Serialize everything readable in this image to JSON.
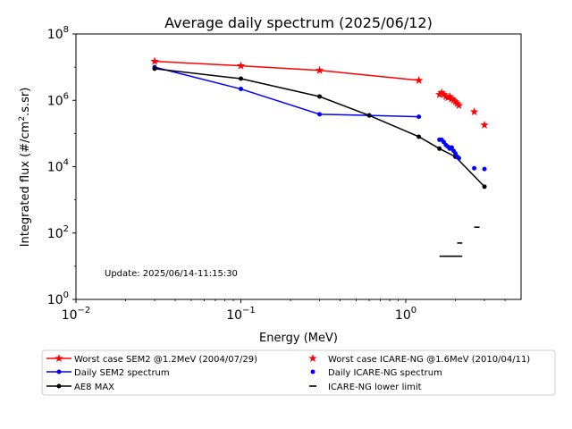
{
  "chart_data": {
    "type": "line",
    "title": "Average daily spectrum (2025/06/12)",
    "xlabel": "Energy (MeV)",
    "ylabel_main": "Integrated flux (#/cm",
    "ylabel_sup": "2",
    "ylabel_end": ".s.sr)",
    "xscale": "log",
    "yscale": "log",
    "xlim": [
      0.01,
      5
    ],
    "ylim": [
      1,
      100000000
    ],
    "x_ticks": [
      {
        "value": 0.01,
        "base": "10",
        "exp": "−2"
      },
      {
        "value": 0.1,
        "base": "10",
        "exp": "−1"
      },
      {
        "value": 1,
        "base": "10",
        "exp": "0"
      }
    ],
    "y_ticks": [
      {
        "value": 1,
        "base": "10",
        "exp": "0"
      },
      {
        "value": 100,
        "base": "10",
        "exp": "2"
      },
      {
        "value": 10000,
        "base": "10",
        "exp": "4"
      },
      {
        "value": 1000000,
        "base": "10",
        "exp": "6"
      },
      {
        "value": 100000000,
        "base": "10",
        "exp": "8"
      }
    ],
    "annotation": "Update: 2025/06/14-11:15:30",
    "series": [
      {
        "name": "Worst case SEM2 @1.2MeV (2004/07/29)",
        "color": "#ff0000",
        "style": "line-star",
        "x": [
          0.03,
          0.1,
          0.3,
          1.2
        ],
        "y": [
          15000000,
          11000000,
          8000000,
          4000000
        ]
      },
      {
        "name": "Daily SEM2 spectrum",
        "color": "#0000ff",
        "style": "line-dot",
        "x": [
          0.03,
          0.1,
          0.3,
          0.6,
          1.2
        ],
        "y": [
          10000000,
          2200000,
          380000,
          350000,
          320000
        ]
      },
      {
        "name": "AE8 MAX",
        "color": "#000000",
        "style": "line-dot",
        "x": [
          0.03,
          0.1,
          0.3,
          0.6,
          1.2,
          1.6,
          2.0,
          3.0
        ],
        "y": [
          9000000,
          4500000,
          1300000,
          350000,
          80000,
          35000,
          20000,
          2500
        ]
      },
      {
        "name": "Worst case ICARE-NG @1.6MeV (2010/04/11)",
        "color": "#ff0000",
        "style": "line-star",
        "x": [
          1.6,
          1.65,
          1.7,
          1.75,
          1.8,
          1.85,
          1.9,
          1.95,
          2.0,
          2.05,
          2.1
        ],
        "y": [
          1500000,
          1700000,
          1500000,
          1300000,
          1200000,
          1300000,
          1100000,
          1000000,
          900000,
          800000,
          700000
        ],
        "extra_points": {
          "x": [
            2.6,
            3.0
          ],
          "y": [
            450000,
            180000
          ]
        }
      },
      {
        "name": "Daily ICARE-NG spectrum",
        "color": "#0000ff",
        "style": "line-dot",
        "x": [
          1.6,
          1.65,
          1.7,
          1.75,
          1.8,
          1.85,
          1.9,
          1.95,
          2.0,
          2.05,
          2.1
        ],
        "y": [
          65000,
          65000,
          55000,
          45000,
          40000,
          35000,
          38000,
          30000,
          25000,
          20000,
          18000
        ],
        "extra_points": {
          "x": [
            2.6,
            3.0
          ],
          "y": [
            9000,
            8500
          ]
        }
      },
      {
        "name": "ICARE-NG lower limit",
        "color": "#000000",
        "style": "segments",
        "segments": [
          {
            "x1": 1.6,
            "x2": 2.2,
            "y": 20
          },
          {
            "x1": 2.05,
            "x2": 2.2,
            "y": 50
          },
          {
            "x1": 2.6,
            "x2": 2.8,
            "y": 150
          }
        ]
      }
    ],
    "legend_position": "below"
  }
}
